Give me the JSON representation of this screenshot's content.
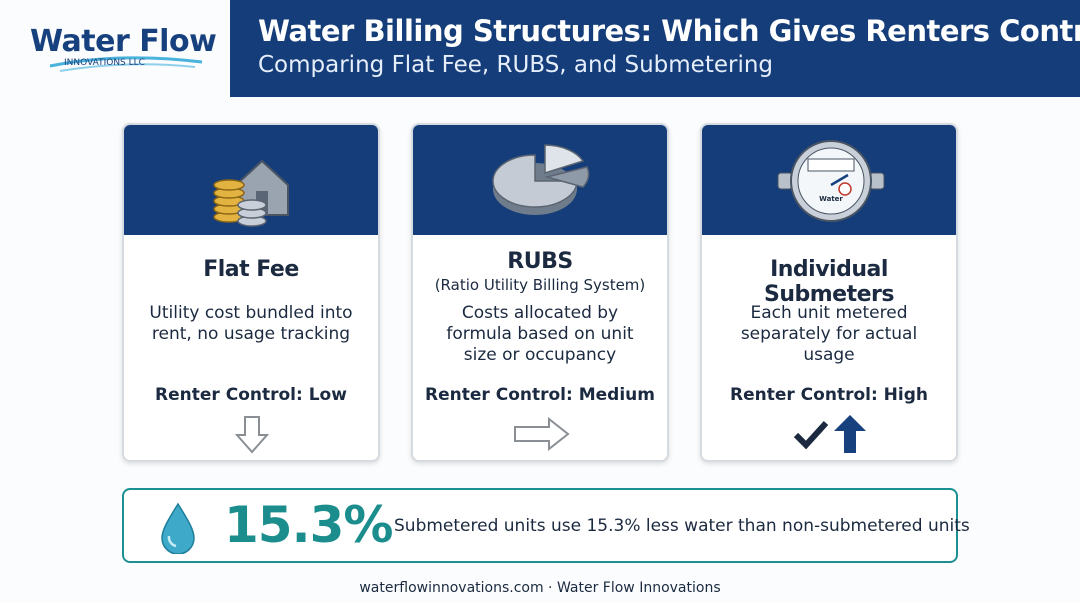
{
  "logo": {
    "name": "Water Flow",
    "tagline": "INNOVATIONS LLC"
  },
  "header": {
    "title": "Water Billing Structures: Which Gives Renters Control?",
    "subtitle": "Comparing Flat Fee, RUBS, and Submetering"
  },
  "cards": [
    {
      "title": "Flat Fee",
      "description": "Utility cost bundled into rent, no usage tracking",
      "control": "Renter Control: Low"
    },
    {
      "title": "RUBS",
      "subtitle": "(Ratio Utility Billing System)",
      "description": "Costs allocated by formula based on unit size or occupancy",
      "control": "Renter Control: Medium"
    },
    {
      "title": "Individual Submeters",
      "description": "Each unit metered separately for actual usage",
      "control": "Renter Control: High"
    }
  ],
  "stat": {
    "value": "15.3%",
    "text": "Submetered units use 15.3% less water than non-submetered units"
  },
  "footer": "waterflowinnovations.com · Water Flow Innovations"
}
